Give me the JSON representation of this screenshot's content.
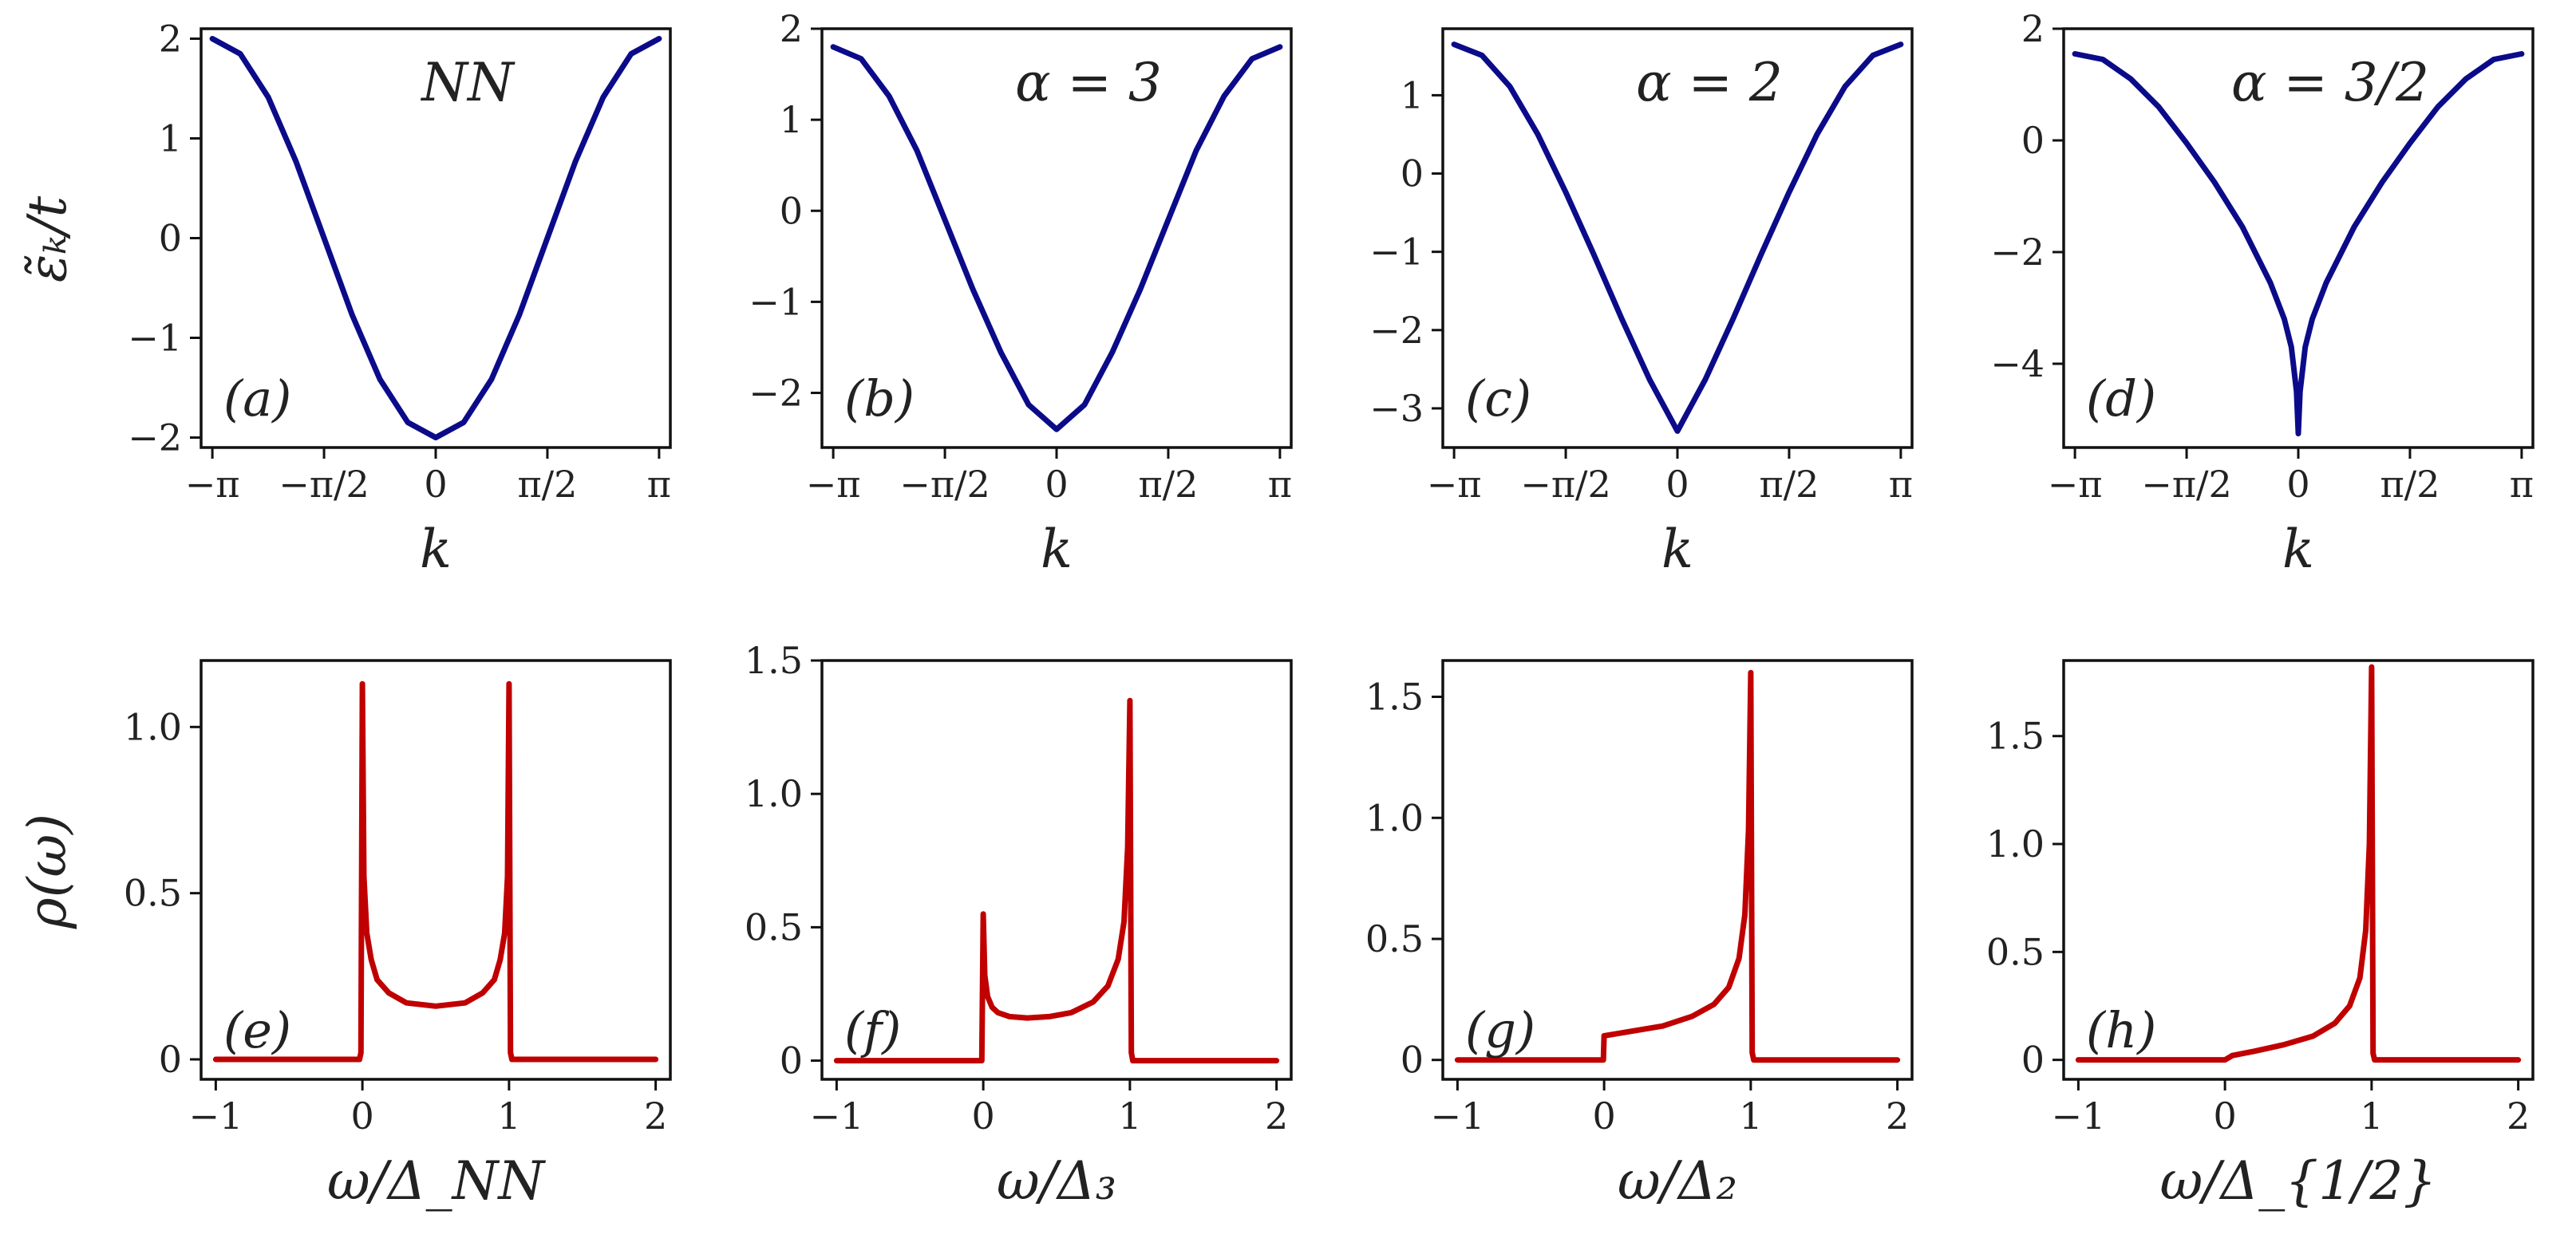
{
  "colors": {
    "dispersion": "#0b0b8a",
    "dos": "#c00000",
    "axes": "#111111"
  },
  "row_labels": {
    "top_ylabel": "ε̃ₖ/t",
    "bottom_ylabel": "ρ(ω)"
  },
  "chart_data": [
    {
      "id": "a",
      "type": "line",
      "tag": "(a)",
      "title": "NN",
      "xlabel": "k",
      "ylabel": "ε̃ₖ/t",
      "xlim": [
        -3.3,
        3.3
      ],
      "ylim": [
        -2.1,
        2.1
      ],
      "xticks": [
        -3.1416,
        -1.5708,
        0,
        1.5708,
        3.1416
      ],
      "xticklabels": [
        "−π",
        "−π/2",
        "0",
        "π/2",
        "π"
      ],
      "yticks": [
        -2,
        -1,
        0,
        1,
        2
      ],
      "yticklabels": [
        "−2",
        "−1",
        "0",
        "1",
        "2"
      ],
      "series": [
        {
          "x": [
            -3.1416,
            -2.7489,
            -2.3562,
            -1.9635,
            -1.5708,
            -1.1781,
            -0.7854,
            -0.3927,
            0,
            0.3927,
            0.7854,
            1.1781,
            1.5708,
            1.9635,
            2.3562,
            2.7489,
            3.1416
          ],
          "y": [
            2.0,
            1.848,
            1.414,
            0.765,
            0.0,
            -0.765,
            -1.414,
            -1.848,
            -2.0,
            -1.848,
            -1.414,
            -0.765,
            0.0,
            0.765,
            1.414,
            1.848,
            2.0
          ]
        }
      ]
    },
    {
      "id": "b",
      "type": "line",
      "tag": "(b)",
      "title": "α = 3",
      "xlabel": "k",
      "ylabel": "",
      "xlim": [
        -3.3,
        3.3
      ],
      "ylim": [
        -2.6,
        2.0
      ],
      "xticks": [
        -3.1416,
        -1.5708,
        0,
        1.5708,
        3.1416
      ],
      "xticklabels": [
        "−π",
        "−π/2",
        "0",
        "π/2",
        "π"
      ],
      "yticks": [
        -2,
        -1,
        0,
        1,
        2
      ],
      "yticklabels": [
        "−2",
        "−1",
        "0",
        "1",
        "2"
      ],
      "series": [
        {
          "x": [
            -3.1416,
            -2.7489,
            -2.3562,
            -1.9635,
            -1.5708,
            -1.1781,
            -0.7854,
            -0.3927,
            0,
            0.3927,
            0.7854,
            1.1781,
            1.5708,
            1.9635,
            2.3562,
            2.7489,
            3.1416
          ],
          "y": [
            1.8,
            1.67,
            1.26,
            0.66,
            -0.1,
            -0.86,
            -1.55,
            -2.13,
            -2.4,
            -2.13,
            -1.55,
            -0.86,
            -0.1,
            0.66,
            1.26,
            1.67,
            1.8
          ]
        }
      ]
    },
    {
      "id": "c",
      "type": "line",
      "tag": "(c)",
      "title": "α = 2",
      "xlabel": "k",
      "ylabel": "",
      "xlim": [
        -3.3,
        3.3
      ],
      "ylim": [
        -3.5,
        1.85
      ],
      "xticks": [
        -3.1416,
        -1.5708,
        0,
        1.5708,
        3.1416
      ],
      "xticklabels": [
        "−π",
        "−π/2",
        "0",
        "π/2",
        "π"
      ],
      "yticks": [
        -3,
        -2,
        -1,
        0,
        1
      ],
      "yticklabels": [
        "−3",
        "−2",
        "−1",
        "0",
        "1"
      ],
      "series": [
        {
          "x": [
            -3.1416,
            -2.7489,
            -2.3562,
            -1.9635,
            -1.5708,
            -1.1781,
            -0.7854,
            -0.3927,
            -0.1963,
            0,
            0.1963,
            0.3927,
            0.7854,
            1.1781,
            1.5708,
            1.9635,
            2.3562,
            2.7489,
            3.1416
          ],
          "y": [
            1.65,
            1.51,
            1.11,
            0.5,
            -0.24,
            -1.03,
            -1.85,
            -2.63,
            -2.96,
            -3.29,
            -2.96,
            -2.63,
            -1.85,
            -1.03,
            -0.24,
            0.5,
            1.11,
            1.51,
            1.65
          ]
        }
      ]
    },
    {
      "id": "d",
      "type": "line",
      "tag": "(d)",
      "title": "α = 3/2",
      "xlabel": "k",
      "ylabel": "",
      "xlim": [
        -3.3,
        3.3
      ],
      "ylim": [
        -5.5,
        2.0
      ],
      "xticks": [
        -3.1416,
        -1.5708,
        0,
        1.5708,
        3.1416
      ],
      "xticklabels": [
        "−π",
        "−π/2",
        "0",
        "π/2",
        "π"
      ],
      "yticks": [
        -4,
        -2,
        0,
        2
      ],
      "yticklabels": [
        "−4",
        "−2",
        "0",
        "2"
      ],
      "series": [
        {
          "x": [
            -3.1416,
            -2.7489,
            -2.3562,
            -1.9635,
            -1.5708,
            -1.1781,
            -0.7854,
            -0.3927,
            -0.1963,
            -0.0982,
            -0.0245,
            0,
            0.0245,
            0.0982,
            0.1963,
            0.3927,
            0.7854,
            1.1781,
            1.5708,
            1.9635,
            2.3562,
            2.7489,
            3.1416
          ],
          "y": [
            1.55,
            1.45,
            1.1,
            0.6,
            -0.05,
            -0.75,
            -1.55,
            -2.55,
            -3.2,
            -3.7,
            -4.5,
            -5.25,
            -4.5,
            -3.7,
            -3.2,
            -2.55,
            -1.55,
            -0.75,
            -0.05,
            0.6,
            1.1,
            1.45,
            1.55
          ]
        }
      ]
    },
    {
      "id": "e",
      "type": "line",
      "tag": "(e)",
      "title": "",
      "xlabel": "ω/Δ_NN",
      "ylabel": "ρ(ω)",
      "xlim": [
        -1.1,
        2.1
      ],
      "ylim": [
        -0.06,
        1.2
      ],
      "xticks": [
        -1,
        0,
        1,
        2
      ],
      "xticklabels": [
        "−1",
        "0",
        "1",
        "2"
      ],
      "yticks": [
        0,
        0.5,
        1.0
      ],
      "yticklabels": [
        "0",
        "0.5",
        "1.0"
      ],
      "series": [
        {
          "x": [
            -1.0,
            -0.02,
            -0.01,
            0.0,
            0.01,
            0.03,
            0.06,
            0.1,
            0.18,
            0.3,
            0.5,
            0.7,
            0.82,
            0.9,
            0.94,
            0.97,
            0.99,
            1.0,
            1.01,
            1.02,
            2.0
          ],
          "y": [
            0.0,
            0.0,
            0.02,
            1.13,
            0.55,
            0.38,
            0.3,
            0.24,
            0.2,
            0.17,
            0.16,
            0.17,
            0.2,
            0.24,
            0.3,
            0.38,
            0.55,
            1.13,
            0.02,
            0.0,
            0.0
          ]
        }
      ]
    },
    {
      "id": "f",
      "type": "line",
      "tag": "(f)",
      "title": "",
      "xlabel": "ω/Δ₃",
      "ylabel": "",
      "xlim": [
        -1.1,
        2.1
      ],
      "ylim": [
        -0.07,
        1.5
      ],
      "xticks": [
        -1,
        0,
        1,
        2
      ],
      "xticklabels": [
        "−1",
        "0",
        "1",
        "2"
      ],
      "yticks": [
        0,
        0.5,
        1.0,
        1.5
      ],
      "yticklabels": [
        "0",
        "0.5",
        "1.0",
        "1.5"
      ],
      "series": [
        {
          "x": [
            -1.0,
            -0.01,
            0.0,
            0.01,
            0.03,
            0.06,
            0.1,
            0.18,
            0.3,
            0.45,
            0.6,
            0.75,
            0.85,
            0.92,
            0.96,
            0.985,
            1.0,
            1.01,
            1.02,
            2.0
          ],
          "y": [
            0.0,
            0.0,
            0.55,
            0.32,
            0.24,
            0.2,
            0.18,
            0.165,
            0.16,
            0.165,
            0.18,
            0.22,
            0.28,
            0.38,
            0.52,
            0.8,
            1.35,
            0.03,
            0.0,
            0.0
          ]
        }
      ]
    },
    {
      "id": "g",
      "type": "line",
      "tag": "(g)",
      "title": "",
      "xlabel": "ω/Δ₂",
      "ylabel": "",
      "xlim": [
        -1.1,
        2.1
      ],
      "ylim": [
        -0.08,
        1.65
      ],
      "xticks": [
        -1,
        0,
        1,
        2
      ],
      "xticklabels": [
        "−1",
        "0",
        "1",
        "2"
      ],
      "yticks": [
        0,
        0.5,
        1.0,
        1.5
      ],
      "yticklabels": [
        "0",
        "0.5",
        "1.0",
        "1.5"
      ],
      "series": [
        {
          "x": [
            -1.0,
            -0.005,
            0.0,
            0.05,
            0.2,
            0.4,
            0.6,
            0.75,
            0.85,
            0.92,
            0.96,
            0.985,
            1.0,
            1.01,
            1.02,
            2.0
          ],
          "y": [
            0.0,
            0.0,
            0.1,
            0.105,
            0.12,
            0.14,
            0.18,
            0.23,
            0.3,
            0.42,
            0.6,
            0.95,
            1.6,
            0.03,
            0.0,
            0.0
          ]
        }
      ]
    },
    {
      "id": "h",
      "type": "line",
      "tag": "(h)",
      "title": "",
      "xlabel": "ω/Δ_{1/2}",
      "ylabel": "",
      "xlim": [
        -1.1,
        2.1
      ],
      "ylim": [
        -0.09,
        1.85
      ],
      "xticks": [
        -1,
        0,
        1,
        2
      ],
      "xticklabels": [
        "−1",
        "0",
        "1",
        "2"
      ],
      "yticks": [
        0,
        0.5,
        1.0,
        1.5
      ],
      "yticklabels": [
        "0",
        "0.5",
        "1.0",
        "1.5"
      ],
      "series": [
        {
          "x": [
            -1.0,
            0.0,
            0.05,
            0.2,
            0.4,
            0.6,
            0.75,
            0.85,
            0.92,
            0.96,
            0.985,
            1.0,
            1.01,
            1.02,
            2.0
          ],
          "y": [
            0.0,
            0.0,
            0.02,
            0.04,
            0.07,
            0.11,
            0.17,
            0.25,
            0.38,
            0.6,
            1.0,
            1.82,
            0.03,
            0.0,
            0.0
          ]
        }
      ]
    }
  ]
}
